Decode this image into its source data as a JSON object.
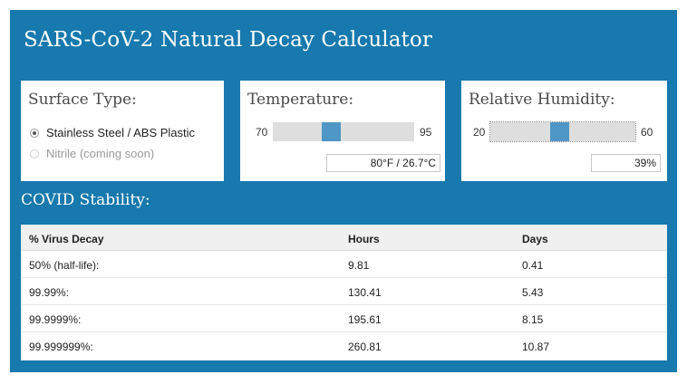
{
  "app": {
    "title": "SARS-CoV-2 Natural Decay Calculator"
  },
  "surface": {
    "title": "Surface Type:",
    "options": [
      {
        "label": "Stainless Steel / ABS Plastic",
        "selected": true,
        "disabled": false
      },
      {
        "label": "Nitrile (coming soon)",
        "selected": false,
        "disabled": true
      }
    ]
  },
  "temperature": {
    "title": "Temperature:",
    "min_label": "70",
    "max_label": "95",
    "min": 70,
    "max": 95,
    "value": 80,
    "display": "80°F / 26.7°C"
  },
  "humidity": {
    "title": "Relative Humidity:",
    "min_label": "20",
    "max_label": "60",
    "min": 20,
    "max": 60,
    "value": 39,
    "display": "39%"
  },
  "stability": {
    "title": "COVID Stability:",
    "columns": [
      "% Virus Decay",
      "Hours",
      "Days"
    ],
    "rows": [
      {
        "decay": "50% (half-life):",
        "hours": "9.81",
        "days": "0.41"
      },
      {
        "decay": "99.99%:",
        "hours": "130.41",
        "days": "5.43"
      },
      {
        "decay": "99.9999%:",
        "hours": "195.61",
        "days": "8.15"
      },
      {
        "decay": "99.999999%:",
        "hours": "260.81",
        "days": "10.87"
      }
    ]
  },
  "colors": {
    "background": "#1779ad",
    "slider_thumb": "#4e97c6",
    "slider_track": "#dedede",
    "table_header": "#f0f0f0"
  }
}
